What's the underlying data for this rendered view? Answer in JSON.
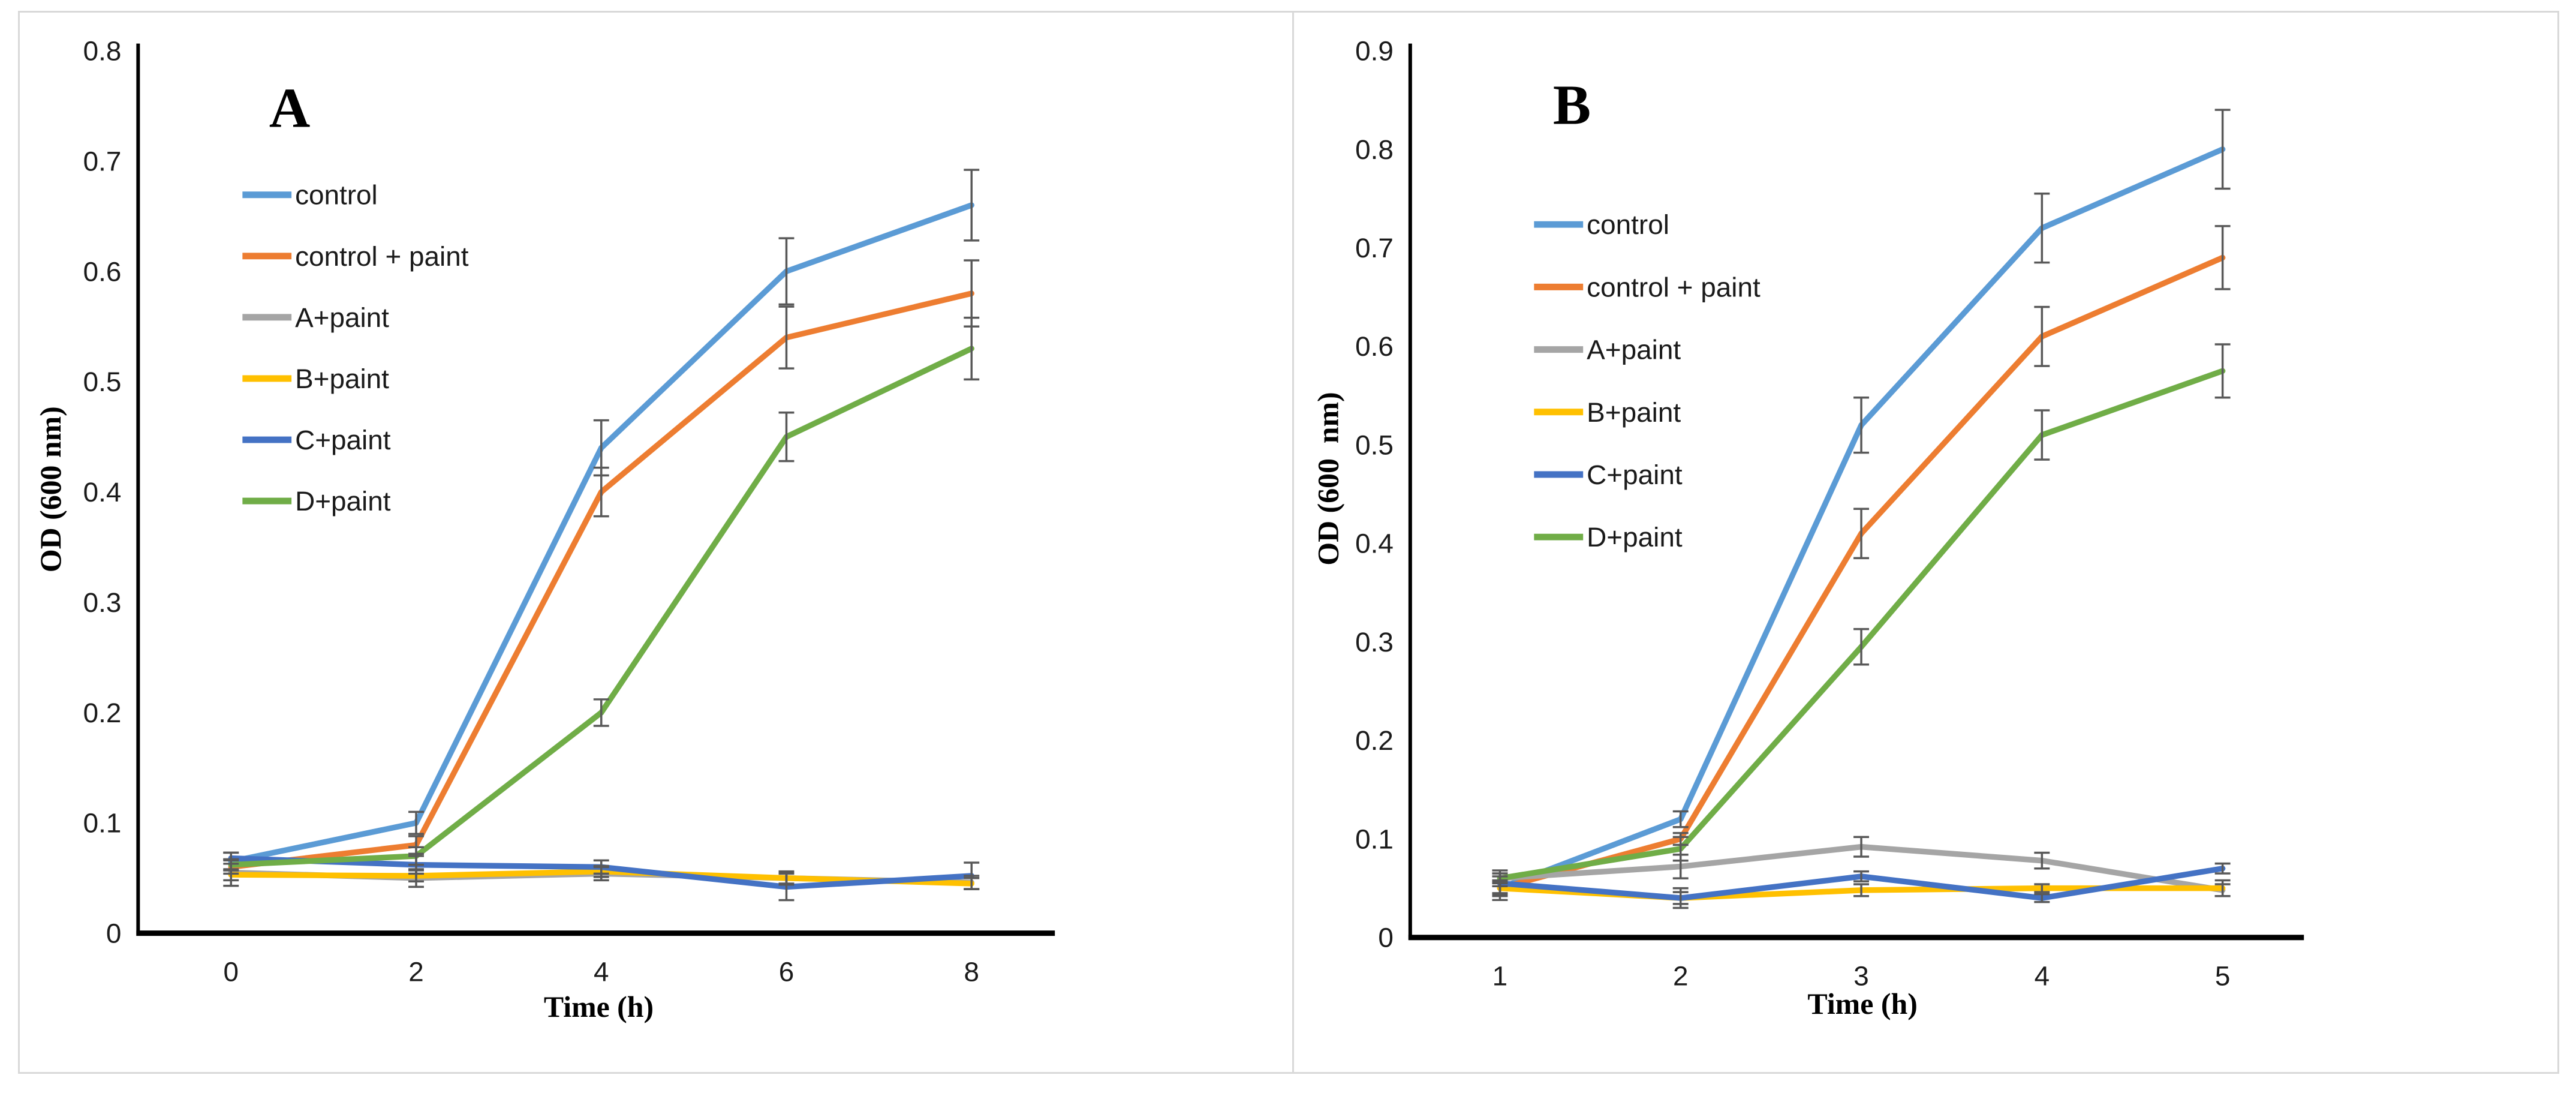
{
  "figure": {
    "background": "#ffffff",
    "panel_border_color": "#d9d9d9",
    "axis_color": "#000000",
    "error_bar_color": "#595959",
    "tick_label_color": "#1a1a1a"
  },
  "chart_data": [
    {
      "id": "A",
      "type": "line",
      "panel_label": "A",
      "title": "",
      "xlabel": "Time (h)",
      "ylabel": "OD (600 nm)",
      "x": [
        0,
        2,
        4,
        6,
        8
      ],
      "ylim": [
        0,
        0.8
      ],
      "ytick_step": 0.1,
      "grid": false,
      "legend_position": "inside-upper-left",
      "legend_entries": [
        "control",
        "control + paint",
        "A+paint",
        "B+paint",
        "C+paint",
        "D+paint"
      ],
      "series": [
        {
          "name": "control",
          "color": "#5B9BD5",
          "values": [
            0.065,
            0.1,
            0.44,
            0.6,
            0.66
          ],
          "errors": [
            0.008,
            0.01,
            0.025,
            0.03,
            0.032
          ]
        },
        {
          "name": "control + paint",
          "color": "#ED7D31",
          "values": [
            0.06,
            0.08,
            0.4,
            0.54,
            0.58
          ],
          "errors": [
            0.006,
            0.008,
            0.022,
            0.028,
            0.03
          ]
        },
        {
          "name": "A+paint",
          "color": "#A5A5A5",
          "values": [
            0.055,
            0.05,
            0.054,
            0.05,
            0.046
          ],
          "errors": [
            0.012,
            0.008,
            0.006,
            0.006,
            0.006
          ]
        },
        {
          "name": "B+paint",
          "color": "#FFC000",
          "values": [
            0.053,
            0.052,
            0.056,
            0.05,
            0.045
          ],
          "errors": [
            0.005,
            0.005,
            0.005,
            0.005,
            0.005
          ]
        },
        {
          "name": "C+paint",
          "color": "#4472C4",
          "values": [
            0.068,
            0.062,
            0.06,
            0.042,
            0.052
          ],
          "errors": [
            0.005,
            0.008,
            0.006,
            0.012,
            0.012
          ]
        },
        {
          "name": "D+paint",
          "color": "#70AD47",
          "values": [
            0.062,
            0.07,
            0.2,
            0.45,
            0.53
          ],
          "errors": [
            0.005,
            0.008,
            0.012,
            0.022,
            0.028
          ]
        }
      ]
    },
    {
      "id": "B",
      "type": "line",
      "panel_label": "B",
      "title": "",
      "xlabel": "Time (h)",
      "ylabel": "OD (600  nm)",
      "x": [
        1,
        2,
        3,
        4,
        5
      ],
      "ylim": [
        0,
        0.9
      ],
      "ytick_step": 0.1,
      "grid": false,
      "legend_position": "inside-upper-left",
      "legend_entries": [
        "control",
        "control + paint",
        "A+paint",
        "B+paint",
        "C+paint",
        "D+paint"
      ],
      "series": [
        {
          "name": "control",
          "color": "#5B9BD5",
          "values": [
            0.05,
            0.12,
            0.52,
            0.72,
            0.8
          ],
          "errors": [
            0.012,
            0.008,
            0.028,
            0.035,
            0.04
          ]
        },
        {
          "name": "control + paint",
          "color": "#ED7D31",
          "values": [
            0.05,
            0.1,
            0.41,
            0.61,
            0.69
          ],
          "errors": [
            0.008,
            0.006,
            0.025,
            0.03,
            0.032
          ]
        },
        {
          "name": "A+paint",
          "color": "#A5A5A5",
          "values": [
            0.06,
            0.072,
            0.092,
            0.078,
            0.048
          ],
          "errors": [
            0.008,
            0.012,
            0.01,
            0.008,
            0.006
          ]
        },
        {
          "name": "B+paint",
          "color": "#FFC000",
          "values": [
            0.05,
            0.04,
            0.048,
            0.05,
            0.05
          ],
          "errors": [
            0.006,
            0.01,
            0.006,
            0.004,
            0.008
          ]
        },
        {
          "name": "C+paint",
          "color": "#4472C4",
          "values": [
            0.055,
            0.04,
            0.062,
            0.04,
            0.07
          ],
          "errors": [
            0.01,
            0.006,
            0.005,
            0.004,
            0.005
          ]
        },
        {
          "name": "D+paint",
          "color": "#70AD47",
          "values": [
            0.06,
            0.09,
            0.295,
            0.51,
            0.575
          ],
          "errors": [
            0.005,
            0.012,
            0.018,
            0.025,
            0.027
          ]
        }
      ]
    }
  ]
}
